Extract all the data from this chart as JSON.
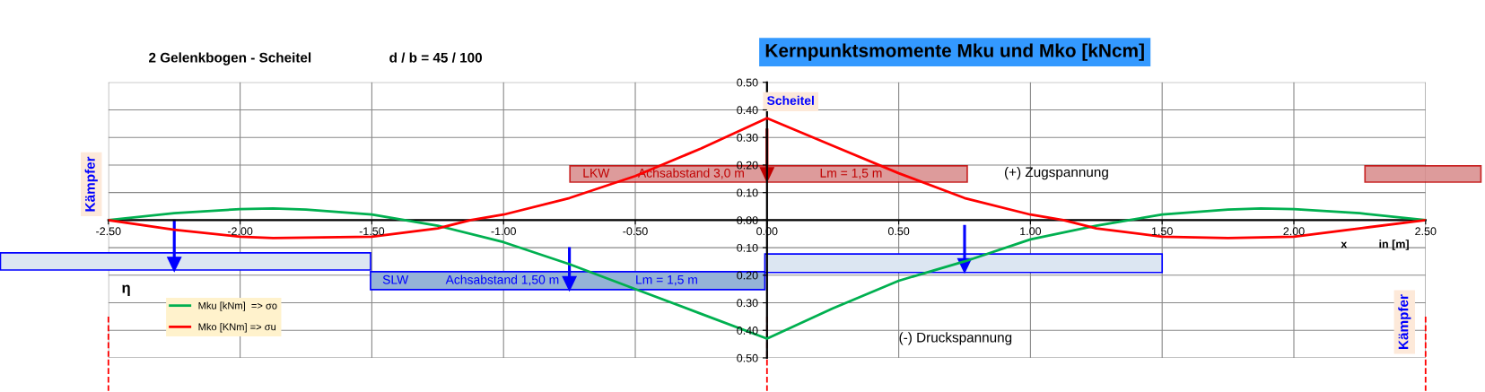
{
  "chart_data": {
    "type": "line",
    "title": "Kernpunktsmomente Mku und Mko [kNcm]",
    "subtitle": "2 Gelenkbogen - Scheitel",
    "xlabel": "in [m]",
    "annotations": [
      "d / b = 45 / 100",
      "Kämpfer",
      "Kämpfer",
      "Scheitel",
      "(+) Zugspannung",
      "(-) Druckspannung",
      "η",
      "x",
      "LKW",
      "Achsabstand 3,0 m",
      "Lm = 1,5 m",
      "SLW",
      "Achsabstand 1,50 m",
      "Lm = 1,5 m"
    ],
    "xlim": [
      -2.5,
      2.5
    ],
    "ylim": [
      -0.5,
      0.5
    ],
    "xticks": [
      {
        "value": -2.5,
        "label": "-2.50"
      },
      {
        "value": -2.0,
        "label": "-2.00"
      },
      {
        "value": -1.5,
        "label": "-1.50"
      },
      {
        "value": -1.0,
        "label": "-1.00"
      },
      {
        "value": -0.5,
        "label": "-0.50"
      },
      {
        "value": 0,
        "label": "0.00"
      },
      {
        "value": 0.5,
        "label": "0.50"
      },
      {
        "value": 1.0,
        "label": "1.00"
      },
      {
        "value": 1.5,
        "label": "1.50"
      },
      {
        "value": 2.0,
        "label": "2.00"
      },
      {
        "value": 2.5,
        "label": "2.50"
      }
    ],
    "yticks": [
      {
        "value": -0.5,
        "label": "0.50"
      },
      {
        "value": -0.4,
        "label": "0.40"
      },
      {
        "value": -0.3,
        "label": "0.30"
      },
      {
        "value": -0.2,
        "label": "0.20"
      },
      {
        "value": -0.1,
        "label": "0.10"
      },
      {
        "value": 0,
        "label": "0.00"
      },
      {
        "value": 0.1,
        "label": "0.10"
      },
      {
        "value": 0.2,
        "label": "0.20"
      },
      {
        "value": 0.3,
        "label": "0.30"
      },
      {
        "value": 0.4,
        "label": "0.40"
      },
      {
        "value": 0.5,
        "label": "0.50"
      }
    ],
    "grid": true,
    "legend": "bottom left",
    "marker": "none",
    "line_style": "solid",
    "ref_lines": [
      {
        "axis": "x",
        "value": -2.5,
        "color": "#ff0000",
        "line_style": "dashed"
      },
      {
        "axis": "x",
        "value": 0,
        "color": "#ff0000",
        "line_style": "dashed"
      },
      {
        "axis": "x",
        "value": 2.5,
        "color": "#ff0000",
        "line_style": "dashed"
      }
    ],
    "series": [
      {
        "name": "Mku [kNm]  => σo",
        "color": "#00b050",
        "x": [
          -2.5,
          -2.25,
          -2.0,
          -1.875,
          -1.75,
          -1.5,
          -1.375,
          -1.25,
          -1.0,
          -0.75,
          -0.5,
          -0.25,
          0,
          0.25,
          0.5,
          0.75,
          1.0,
          1.25,
          1.375,
          1.5,
          1.75,
          1.875,
          2.0,
          2.25,
          2.5
        ],
        "values": [
          0,
          0.025,
          0.04,
          0.042,
          0.038,
          0.02,
          0,
          -0.02,
          -0.08,
          -0.16,
          -0.25,
          -0.34,
          -0.43,
          -0.32,
          -0.22,
          -0.15,
          -0.07,
          -0.02,
          0,
          0.02,
          0.038,
          0.042,
          0.04,
          0.025,
          0
        ]
      },
      {
        "name": "Mko [KNm] => σu",
        "color": "#ff0000",
        "x": [
          -2.5,
          -2.25,
          -2.0,
          -1.875,
          -1.5,
          -1.25,
          -1.125,
          -1.0,
          -0.75,
          -0.5,
          -0.25,
          0,
          0.25,
          0.5,
          0.75,
          1.0,
          1.125,
          1.25,
          1.5,
          1.75,
          2.0,
          2.25,
          2.5
        ],
        "values": [
          0,
          -0.035,
          -0.06,
          -0.065,
          -0.06,
          -0.03,
          0,
          0.02,
          0.08,
          0.16,
          0.26,
          0.37,
          0.27,
          0.17,
          0.08,
          0.02,
          0,
          -0.03,
          -0.06,
          -0.065,
          -0.06,
          -0.03,
          0
        ]
      }
    ]
  }
}
